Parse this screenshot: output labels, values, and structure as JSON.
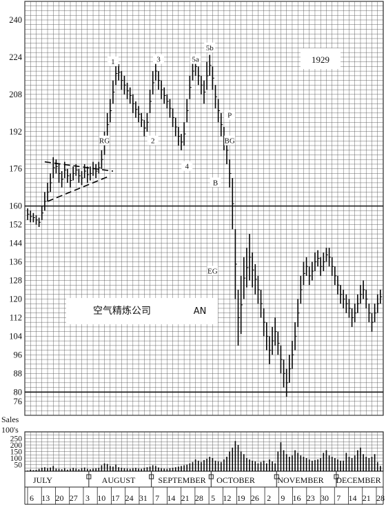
{
  "chart_data": {
    "type": "bar",
    "subtype": "daily-high-low-bar-chart-with-volume",
    "year_label": "1929",
    "company_name": "空气精炼公司",
    "ticker": "AN",
    "price_axis": {
      "ylim": [
        70,
        248
      ],
      "ticks": [
        240,
        224,
        208,
        192,
        176,
        160,
        152,
        144,
        136,
        128,
        120,
        112,
        104,
        96,
        88,
        80,
        76
      ],
      "heavy_lines": [
        160,
        80
      ]
    },
    "volume_axis": {
      "label_line1": "Sales",
      "label_line2": "100's",
      "ylim": [
        0,
        300
      ],
      "ticks": [
        250,
        200,
        150,
        100,
        50
      ]
    },
    "x_axis": {
      "months": [
        "JULY",
        "AUGUST",
        "SEPTEMBER",
        "OCTOBER",
        "NOVEMBER",
        "DECEMBER"
      ],
      "week_labels": [
        "6",
        "13",
        "20",
        "27",
        "3",
        "10",
        "17",
        "24",
        "31",
        "7",
        "14",
        "21",
        "28",
        "5",
        "12",
        "19",
        "26",
        "2",
        "9",
        "16",
        "23",
        "30",
        "7",
        "14",
        "21",
        "28"
      ]
    },
    "annotations": [
      {
        "text": "1",
        "day": 30,
        "price": 221
      },
      {
        "text": "2",
        "day": 44,
        "price": 187
      },
      {
        "text": "3",
        "day": 46,
        "price": 222
      },
      {
        "text": "4",
        "day": 56,
        "price": 176
      },
      {
        "text": "5a",
        "day": 59,
        "price": 222
      },
      {
        "text": "5b",
        "day": 64,
        "price": 227
      },
      {
        "text": "RG",
        "day": 27,
        "price": 187
      },
      {
        "text": "P",
        "day": 71,
        "price": 198
      },
      {
        "text": "BG",
        "day": 71,
        "price": 187
      },
      {
        "text": "B",
        "day": 66,
        "price": 169
      },
      {
        "text": "EG",
        "day": 65,
        "price": 131
      }
    ],
    "trendlines": [
      {
        "from": [
          6,
          179
        ],
        "to": [
          30,
          175
        ]
      },
      {
        "from": [
          7,
          162
        ],
        "to": [
          29,
          173
        ]
      }
    ],
    "bars": [
      [
        154,
        159,
        5
      ],
      [
        153,
        158,
        12
      ],
      [
        153,
        157,
        8
      ],
      [
        152,
        156,
        10
      ],
      [
        151,
        155,
        18
      ],
      [
        154,
        160,
        25
      ],
      [
        158,
        166,
        30
      ],
      [
        162,
        170,
        22
      ],
      [
        166,
        174,
        28
      ],
      [
        172,
        181,
        40
      ],
      [
        174,
        180,
        20
      ],
      [
        170,
        178,
        18
      ],
      [
        168,
        175,
        15
      ],
      [
        172,
        179,
        22
      ],
      [
        170,
        176,
        12
      ],
      [
        168,
        174,
        18
      ],
      [
        171,
        177,
        25
      ],
      [
        173,
        178,
        20
      ],
      [
        170,
        176,
        15
      ],
      [
        169,
        175,
        22
      ],
      [
        172,
        178,
        28
      ],
      [
        170,
        177,
        18
      ],
      [
        171,
        177,
        15
      ],
      [
        173,
        179,
        20
      ],
      [
        172,
        178,
        22
      ],
      [
        174,
        179,
        25
      ],
      [
        176,
        184,
        45
      ],
      [
        182,
        192,
        60
      ],
      [
        190,
        200,
        55
      ],
      [
        196,
        206,
        40
      ],
      [
        204,
        214,
        35
      ],
      [
        212,
        222,
        50
      ],
      [
        214,
        221,
        30
      ],
      [
        210,
        218,
        25
      ],
      [
        208,
        216,
        22
      ],
      [
        206,
        213,
        20
      ],
      [
        204,
        211,
        18
      ],
      [
        200,
        208,
        22
      ],
      [
        198,
        205,
        25
      ],
      [
        196,
        203,
        20
      ],
      [
        194,
        200,
        18
      ],
      [
        190,
        197,
        24
      ],
      [
        192,
        200,
        30
      ],
      [
        200,
        210,
        35
      ],
      [
        208,
        218,
        45
      ],
      [
        214,
        222,
        40
      ],
      [
        210,
        218,
        28
      ],
      [
        206,
        214,
        22
      ],
      [
        204,
        211,
        20
      ],
      [
        202,
        208,
        18
      ],
      [
        198,
        206,
        22
      ],
      [
        194,
        202,
        26
      ],
      [
        190,
        198,
        30
      ],
      [
        186,
        194,
        35
      ],
      [
        184,
        191,
        40
      ],
      [
        186,
        196,
        45
      ],
      [
        196,
        206,
        50
      ],
      [
        206,
        216,
        60
      ],
      [
        214,
        222,
        70
      ],
      [
        216,
        224,
        90
      ],
      [
        212,
        220,
        80
      ],
      [
        208,
        216,
        70
      ],
      [
        204,
        214,
        85
      ],
      [
        210,
        222,
        95
      ],
      [
        216,
        225,
        110
      ],
      [
        210,
        220,
        100
      ],
      [
        202,
        212,
        80
      ],
      [
        196,
        206,
        75
      ],
      [
        190,
        200,
        70
      ],
      [
        184,
        194,
        90
      ],
      [
        178,
        190,
        110
      ],
      [
        168,
        180,
        150
      ],
      [
        150,
        172,
        180
      ],
      [
        120,
        150,
        230
      ],
      [
        100,
        124,
        200
      ],
      [
        105,
        130,
        150
      ],
      [
        120,
        138,
        130
      ],
      [
        125,
        142,
        100
      ],
      [
        128,
        148,
        90
      ],
      [
        125,
        140,
        80
      ],
      [
        122,
        135,
        75
      ],
      [
        118,
        130,
        60
      ],
      [
        112,
        124,
        70
      ],
      [
        104,
        116,
        80
      ],
      [
        98,
        110,
        60
      ],
      [
        92,
        104,
        90
      ],
      [
        96,
        108,
        75
      ],
      [
        100,
        112,
        60
      ],
      [
        96,
        106,
        150
      ],
      [
        88,
        100,
        220
      ],
      [
        82,
        94,
        160
      ],
      [
        78,
        90,
        130
      ],
      [
        84,
        96,
        110
      ],
      [
        90,
        102,
        120
      ],
      [
        98,
        110,
        160
      ],
      [
        108,
        120,
        140
      ],
      [
        118,
        130,
        120
      ],
      [
        126,
        136,
        110
      ],
      [
        130,
        138,
        100
      ],
      [
        126,
        134,
        90
      ],
      [
        128,
        136,
        80
      ],
      [
        132,
        140,
        85
      ],
      [
        134,
        141,
        90
      ],
      [
        130,
        138,
        100
      ],
      [
        132,
        140,
        140
      ],
      [
        136,
        142,
        160
      ],
      [
        134,
        142,
        120
      ],
      [
        130,
        138,
        110
      ],
      [
        126,
        134,
        100
      ],
      [
        122,
        130,
        90
      ],
      [
        118,
        126,
        80
      ],
      [
        116,
        124,
        80
      ],
      [
        114,
        122,
        140
      ],
      [
        112,
        120,
        110
      ],
      [
        108,
        116,
        100
      ],
      [
        110,
        118,
        120
      ],
      [
        114,
        122,
        160
      ],
      [
        118,
        126,
        180
      ],
      [
        120,
        128,
        130
      ],
      [
        116,
        124,
        110
      ],
      [
        110,
        118,
        100
      ],
      [
        106,
        114,
        110
      ],
      [
        110,
        118,
        130
      ],
      [
        114,
        122,
        70
      ],
      [
        118,
        124,
        40
      ]
    ]
  }
}
